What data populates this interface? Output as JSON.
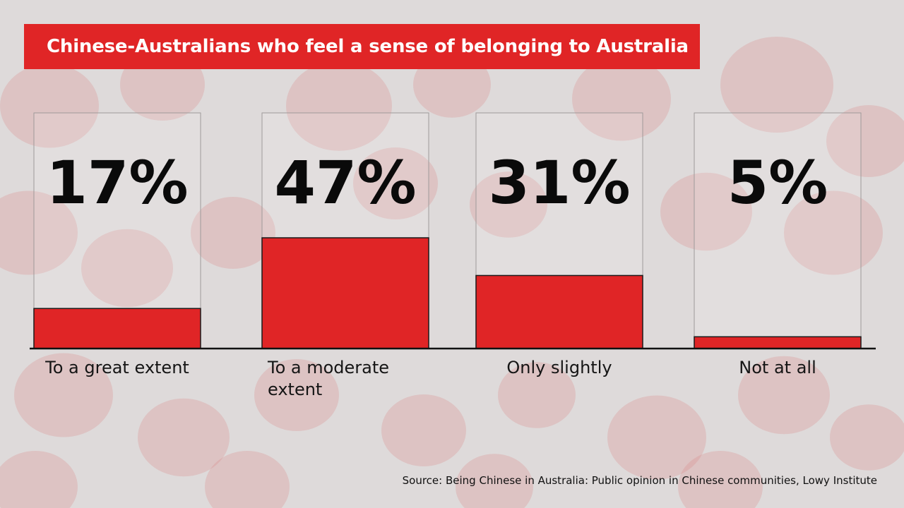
{
  "title": "Chinese-Australians who feel a sense of belonging to Australia",
  "source": "Source: Being Chinese in Australia: Public opinion in Chinese communities, Lowy Institute",
  "colors": {
    "accent": "#e02526",
    "background": "#d9d6d6",
    "lantern": "#cf3a3a",
    "text": "#0a0a0a"
  },
  "chart_data": {
    "type": "bar",
    "categories": [
      "To a great extent",
      "To a moderate extent",
      "Only slightly",
      "Not at all"
    ],
    "category_lines": [
      [
        "To a great extent"
      ],
      [
        "To a moderate",
        "extent"
      ],
      [
        "Only slightly"
      ],
      [
        "Not at all"
      ]
    ],
    "values": [
      17,
      47,
      31,
      5
    ],
    "value_labels": [
      "17%",
      "47%",
      "31%",
      "5%"
    ],
    "unit": "%",
    "ylim": [
      0,
      100
    ],
    "grid": false,
    "legend": "none"
  }
}
